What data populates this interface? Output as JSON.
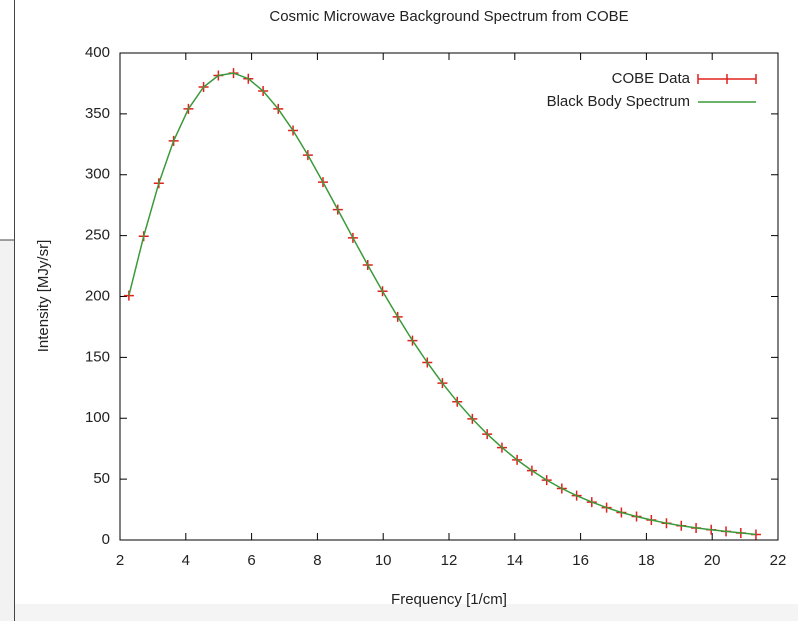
{
  "chart_data": {
    "type": "line",
    "title": "Cosmic Microwave Background Spectrum from COBE",
    "x_label": "Frequency [1/cm]",
    "y_label": "Intensity [MJy/sr]",
    "xlim": [
      2,
      22
    ],
    "xticks": [
      2,
      4,
      6,
      8,
      10,
      12,
      14,
      16,
      18,
      20,
      22
    ],
    "ylim": [
      0,
      400
    ],
    "yticks": [
      0,
      50,
      100,
      150,
      200,
      250,
      300,
      350,
      400
    ],
    "legend": "top-right",
    "series": [
      {
        "name": "COBE Data",
        "color": "#e0201b",
        "marker": "plus",
        "line": false,
        "x": [
          2.27,
          2.72,
          3.18,
          3.63,
          4.08,
          4.54,
          4.99,
          5.45,
          5.9,
          6.35,
          6.81,
          7.26,
          7.71,
          8.17,
          8.62,
          9.08,
          9.53,
          9.98,
          10.44,
          10.89,
          11.34,
          11.8,
          12.25,
          12.71,
          13.16,
          13.61,
          14.07,
          14.52,
          14.97,
          15.43,
          15.88,
          16.34,
          16.79,
          17.24,
          17.7,
          18.15,
          18.61,
          19.06,
          19.51,
          19.97,
          20.42,
          20.87,
          21.33
        ],
        "values": [
          200.7,
          249.5,
          293.0,
          327.8,
          354.1,
          372.1,
          381.5,
          383.5,
          378.9,
          368.8,
          354.1,
          336.3,
          316.1,
          293.9,
          271.4,
          248.2,
          225.9,
          204.3,
          183.3,
          163.8,
          145.8,
          128.8,
          113.6,
          99.5,
          87.0,
          75.9,
          65.8,
          57.0,
          49.2,
          42.3,
          36.4,
          31.1,
          26.6,
          22.6,
          19.3,
          16.4,
          13.8,
          11.7,
          9.9,
          8.4,
          7.1,
          5.8,
          4.5
        ]
      },
      {
        "name": "Black Body Spectrum",
        "color": "#3a9a3a",
        "marker": "none",
        "line": true,
        "x": [
          2.27,
          2.72,
          3.18,
          3.63,
          4.08,
          4.54,
          4.99,
          5.45,
          5.9,
          6.35,
          6.81,
          7.26,
          7.71,
          8.17,
          8.62,
          9.08,
          9.53,
          9.98,
          10.44,
          10.89,
          11.34,
          11.8,
          12.25,
          12.71,
          13.16,
          13.61,
          14.07,
          14.52,
          14.97,
          15.43,
          15.88,
          16.34,
          16.79,
          17.24,
          17.7,
          18.15,
          18.61,
          19.06,
          19.51,
          19.97,
          20.42,
          20.87,
          21.33
        ],
        "values": [
          200.7,
          249.5,
          293.0,
          327.8,
          354.1,
          372.1,
          381.5,
          383.5,
          378.9,
          368.8,
          354.1,
          336.3,
          316.1,
          293.9,
          271.4,
          248.2,
          225.9,
          204.3,
          183.3,
          163.8,
          145.8,
          128.8,
          113.6,
          99.5,
          87.0,
          75.9,
          65.8,
          57.0,
          49.2,
          42.3,
          36.4,
          31.1,
          26.6,
          22.6,
          19.3,
          16.4,
          13.8,
          11.7,
          9.9,
          8.4,
          7.1,
          5.8,
          4.5
        ]
      }
    ]
  }
}
